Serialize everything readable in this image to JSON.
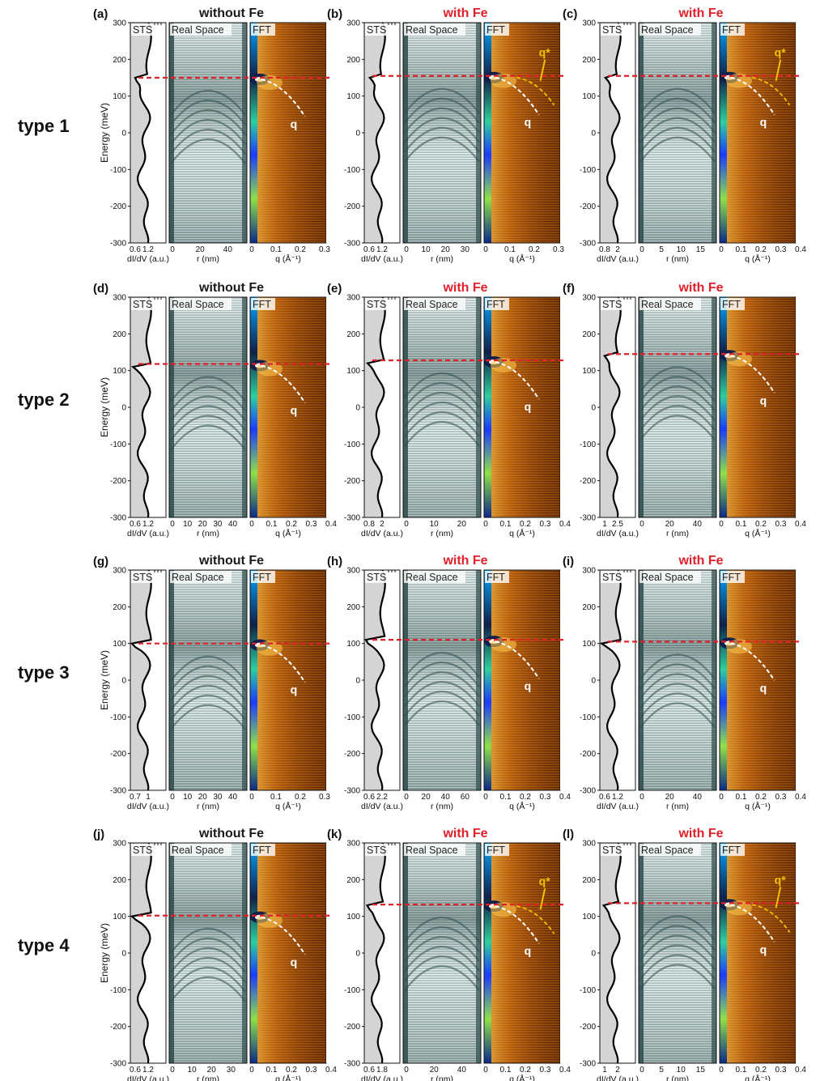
{
  "figure": {
    "rows": [
      {
        "type_label": "type 1",
        "panels": [
          {
            "letter": "(a)",
            "condition": "without Fe",
            "with_fe": false,
            "peak_mev": 150,
            "sts_ticks": [
              "0.6",
              "1.2"
            ],
            "rs_ticks": [
              "0",
              "20",
              "40"
            ],
            "fft_ticks": [
              "0",
              "0.1",
              "0.2",
              "0.3"
            ],
            "qstar": false,
            "last_tick_overlap": true
          },
          {
            "letter": "(b)",
            "condition": "with Fe",
            "with_fe": true,
            "peak_mev": 155,
            "sts_ticks": [
              "0.6",
              "1.2"
            ],
            "rs_ticks": [
              "0",
              "10",
              "20",
              "30"
            ],
            "fft_ticks": [
              "0",
              "0.1",
              "0.2",
              "0.3"
            ],
            "qstar": true,
            "last_tick_overlap": false
          },
          {
            "letter": "(c)",
            "condition": "with Fe",
            "with_fe": true,
            "peak_mev": 155,
            "sts_ticks": [
              "0.8",
              "2"
            ],
            "rs_ticks": [
              "0",
              "5",
              "10",
              "15"
            ],
            "fft_ticks": [
              "0",
              "0.1",
              "0.2",
              "0.3",
              "0.4"
            ],
            "qstar": true,
            "last_tick_overlap": false
          }
        ]
      },
      {
        "type_label": "type 2",
        "panels": [
          {
            "letter": "(d)",
            "condition": "without Fe",
            "with_fe": false,
            "peak_mev": 118,
            "sts_ticks": [
              "0.6",
              "1.2"
            ],
            "rs_ticks": [
              "0",
              "10",
              "20",
              "30",
              "40"
            ],
            "fft_ticks": [
              "0",
              "0.1",
              "0.2",
              "0.3",
              "0.4"
            ],
            "qstar": false,
            "last_tick_overlap": false
          },
          {
            "letter": "(e)",
            "condition": "with Fe",
            "with_fe": true,
            "peak_mev": 128,
            "sts_ticks": [
              "0.8",
              "2"
            ],
            "rs_ticks": [
              "0",
              "10",
              "20"
            ],
            "fft_ticks": [
              "0",
              "0.1",
              "0.2",
              "0.3",
              "0.4"
            ],
            "qstar": false,
            "last_tick_overlap": false
          },
          {
            "letter": "(f)",
            "condition": "with Fe",
            "with_fe": true,
            "peak_mev": 145,
            "sts_ticks": [
              "1",
              "2.5"
            ],
            "rs_ticks": [
              "0",
              "20",
              "40"
            ],
            "fft_ticks": [
              "0",
              "0.1",
              "0.2",
              "0.3",
              "0.4"
            ],
            "qstar": false,
            "last_tick_overlap": false
          }
        ]
      },
      {
        "type_label": "type 3",
        "panels": [
          {
            "letter": "(g)",
            "condition": "without Fe",
            "with_fe": false,
            "peak_mev": 100,
            "sts_ticks": [
              "0.7",
              "1"
            ],
            "rs_ticks": [
              "0",
              "10",
              "20",
              "30",
              "40"
            ],
            "fft_ticks": [
              "0",
              "0.1",
              "0.2",
              "0.3"
            ],
            "qstar": false,
            "last_tick_overlap": false
          },
          {
            "letter": "(h)",
            "condition": "with Fe",
            "with_fe": true,
            "peak_mev": 110,
            "sts_ticks": [
              "0.6",
              "2.2"
            ],
            "rs_ticks": [
              "0",
              "20",
              "40",
              "60"
            ],
            "fft_ticks": [
              "0",
              "0.1",
              "0.2",
              "0.3",
              "0.4"
            ],
            "qstar": false,
            "last_tick_overlap": true
          },
          {
            "letter": "(i)",
            "condition": "with Fe",
            "with_fe": true,
            "peak_mev": 105,
            "sts_ticks": [
              "0.6",
              "1.2"
            ],
            "rs_ticks": [
              "0",
              "20",
              "40"
            ],
            "fft_ticks": [
              "0",
              "0.1",
              "0.2",
              "0.3",
              "0.4"
            ],
            "qstar": false,
            "last_tick_overlap": true
          }
        ]
      },
      {
        "type_label": "type 4",
        "panels": [
          {
            "letter": "(j)",
            "condition": "without Fe",
            "with_fe": false,
            "peak_mev": 102,
            "sts_ticks": [
              "0.6",
              "1.2"
            ],
            "rs_ticks": [
              "0",
              "10",
              "20",
              "30"
            ],
            "fft_ticks": [
              "0",
              "0.1",
              "0.2",
              "0.3",
              "0.4"
            ],
            "qstar": false,
            "last_tick_overlap": false
          },
          {
            "letter": "(k)",
            "condition": "with Fe",
            "with_fe": true,
            "peak_mev": 132,
            "sts_ticks": [
              "0.6",
              "1.8"
            ],
            "rs_ticks": [
              "0",
              "20",
              "40"
            ],
            "fft_ticks": [
              "0",
              "0.1",
              "0.2",
              "0.3",
              "0.4"
            ],
            "qstar": true,
            "last_tick_overlap": false
          },
          {
            "letter": "(l)",
            "condition": "with Fe",
            "with_fe": true,
            "peak_mev": 136,
            "sts_ticks": [
              "1",
              "2"
            ],
            "rs_ticks": [
              "0",
              "5",
              "10",
              "15"
            ],
            "fft_ticks": [
              "0",
              "0.1",
              "0.2",
              "0.3",
              "0.4"
            ],
            "qstar": true,
            "last_tick_overlap": true
          }
        ]
      }
    ],
    "energy_axis": {
      "label": "Energy (meV)",
      "min": -300,
      "max": 300,
      "ticks": [
        "300",
        "200",
        "100",
        "0",
        "-100",
        "-200",
        "-300"
      ]
    },
    "tags": {
      "sts": "STS",
      "real_space": "Real Space",
      "fft": "FFT"
    },
    "axis_labels": {
      "sts": "dI/dV (a.u.)",
      "rs": "r (nm)",
      "fft": "q (Å⁻¹)"
    },
    "markers": {
      "q": "q",
      "qstar": "q*"
    },
    "colors": {
      "without_fe": "#1a1a1a",
      "with_fe": "#e0202a",
      "fermi_line": "#e0202a",
      "qstar": "#f2c200",
      "q_curve": "#ffffff",
      "sts_fill": "#d4d4d4",
      "rs_base": "#2c4a4a",
      "fft_base": "#8a3c00"
    }
  }
}
